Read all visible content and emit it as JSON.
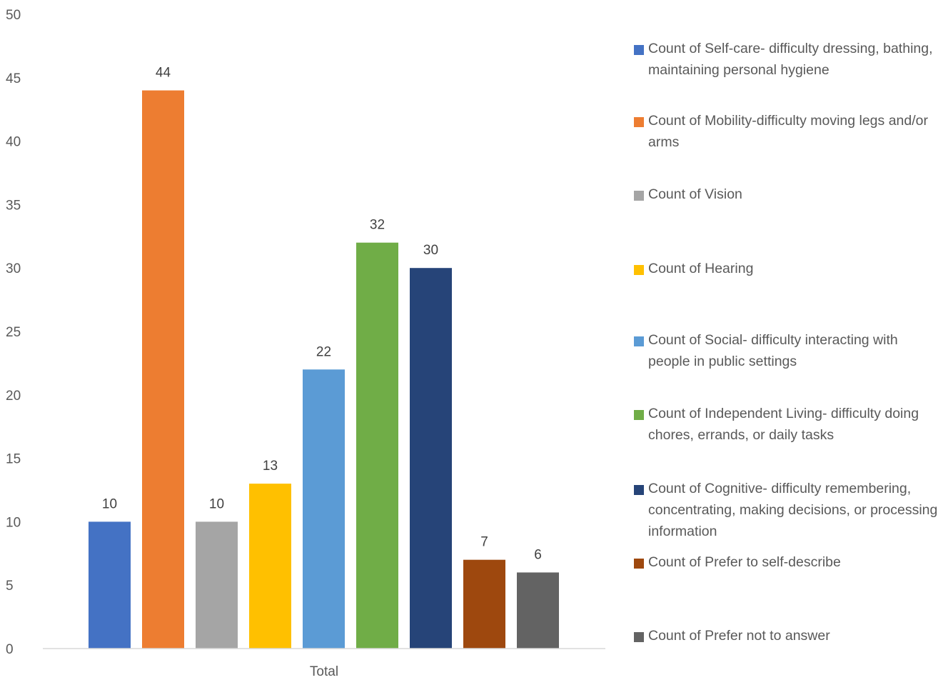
{
  "chart_data": {
    "type": "bar",
    "categories": [
      "Total"
    ],
    "series": [
      {
        "name": "Count of Self-care- difficulty dressing, bathing, maintaining personal hygiene",
        "values": [
          10
        ],
        "color": "#4472C4"
      },
      {
        "name": "Count of Mobility-difficulty moving legs and/or arms",
        "values": [
          44
        ],
        "color": "#ED7D31"
      },
      {
        "name": "Count of Vision",
        "values": [
          10
        ],
        "color": "#A5A5A5"
      },
      {
        "name": "Count of Hearing",
        "values": [
          13
        ],
        "color": "#FFC000"
      },
      {
        "name": "Count of Social- difficulty interacting with people in public settings",
        "values": [
          22
        ],
        "color": "#5B9BD5"
      },
      {
        "name": "Count of Independent Living- difficulty doing chores, errands, or daily tasks",
        "values": [
          32
        ],
        "color": "#70AD47"
      },
      {
        "name": "Count of Cognitive- difficulty remembering, concentrating, making decisions, or processing information",
        "values": [
          30
        ],
        "color": "#264478"
      },
      {
        "name": "Count of Prefer to self-describe",
        "values": [
          7
        ],
        "color": "#9E480E"
      },
      {
        "name": "Count of Prefer not to answer",
        "values": [
          6
        ],
        "color": "#636363"
      }
    ],
    "title": "",
    "xlabel": "",
    "ylabel": "",
    "ylim": [
      0,
      50
    ],
    "yticks": [
      "0",
      "5",
      "10",
      "15",
      "20",
      "25",
      "30",
      "35",
      "40",
      "45",
      "50"
    ],
    "grid": false,
    "data_labels": true,
    "legend_position": "right"
  }
}
